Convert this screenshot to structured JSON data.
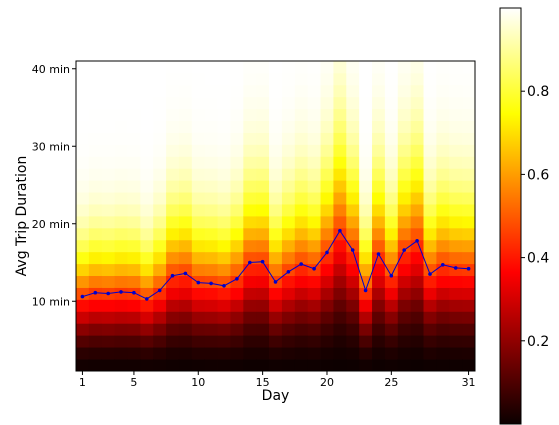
{
  "chart_data": {
    "type": "heatmap",
    "xlabel": "Day",
    "ylabel": "Avg Trip Duration",
    "x_ticks": [
      1,
      5,
      10,
      15,
      20,
      25,
      31
    ],
    "x_tick_labels": [
      "1",
      "5",
      "10",
      "15",
      "20",
      "25",
      "31"
    ],
    "y_ticks": [
      10,
      20,
      30,
      40
    ],
    "y_tick_labels": [
      "10 min",
      "20 min",
      "30 min",
      "40 min"
    ],
    "xlim": [
      0.5,
      31.5
    ],
    "ylim": [
      1,
      41
    ],
    "colorbar": {
      "ticks": [
        0.2,
        0.4,
        0.6,
        0.8
      ],
      "tick_labels": [
        "0.2",
        "0.4",
        "0.6",
        "0.8"
      ],
      "range": [
        0,
        1
      ],
      "colormap": "hot"
    },
    "heat_rows": 26,
    "days": [
      1,
      2,
      3,
      4,
      5,
      6,
      7,
      8,
      9,
      10,
      11,
      12,
      13,
      14,
      15,
      16,
      17,
      18,
      19,
      20,
      21,
      22,
      23,
      24,
      25,
      26,
      27,
      28,
      29,
      30,
      31
    ],
    "avg_duration": [
      10.6,
      11.1,
      11.0,
      11.2,
      11.1,
      10.3,
      11.4,
      13.3,
      13.6,
      12.4,
      12.3,
      12.0,
      12.9,
      15.0,
      15.1,
      12.5,
      13.8,
      14.8,
      14.2,
      16.3,
      19.1,
      16.6,
      11.4,
      16.1,
      13.3,
      16.6,
      17.8,
      13.5,
      14.7,
      14.3,
      14.2
    ],
    "line_color": "#0000cc"
  }
}
